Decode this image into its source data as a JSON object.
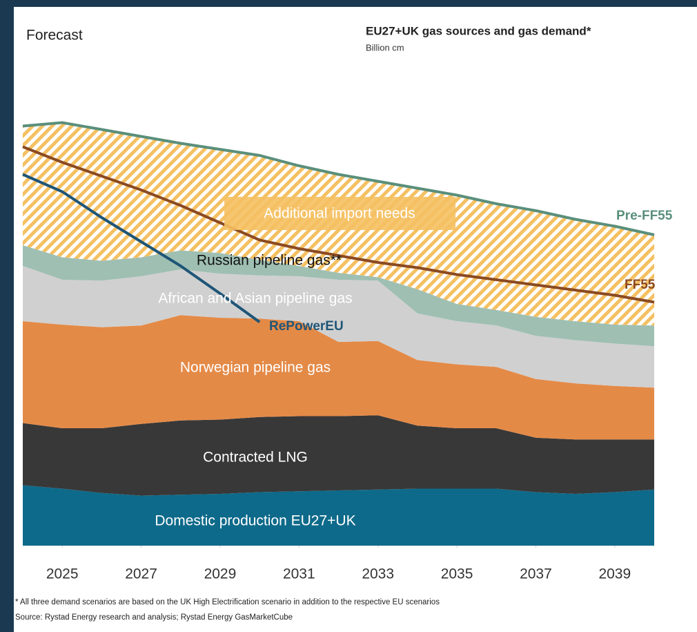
{
  "chart_data": {
    "type": "stacked_area",
    "title": "EU27+UK gas sources and gas demand*",
    "subtitle": "Billion cm",
    "annotation": "Forecast",
    "footnote": "* All three demand scenarios are based on the UK High Electrification scenario in addition to the respective EU scenarios",
    "source": "Source: Rystad Energy research and analysis; Rystad Energy GasMarketCube",
    "x": [
      2024,
      2025,
      2026,
      2027,
      2028,
      2029,
      2030,
      2031,
      2032,
      2033,
      2034,
      2035,
      2036,
      2037,
      2038,
      2039,
      2040
    ],
    "xlim": [
      2024,
      2040
    ],
    "xticks": [
      2025,
      2027,
      2029,
      2031,
      2033,
      2035,
      2037,
      2039
    ],
    "ylim": [
      0,
      520
    ],
    "series": [
      {
        "name": "Domestic production EU27+UK",
        "color": "#0e6a8a",
        "values": [
          70,
          66,
          61,
          58,
          59,
          60,
          62,
          63,
          64,
          65,
          66,
          66,
          66,
          62,
          60,
          62,
          65
        ]
      },
      {
        "name": "Contracted LNG",
        "color": "#383838",
        "values": [
          72,
          70,
          75,
          83,
          86,
          86,
          87,
          87,
          86,
          86,
          73,
          70,
          70,
          63,
          63,
          61,
          58
        ]
      },
      {
        "name": "Norwegian pipeline gas",
        "color": "#e48a47",
        "values": [
          118,
          120,
          117,
          114,
          122,
          118,
          114,
          110,
          86,
          86,
          76,
          74,
          71,
          68,
          65,
          62,
          60
        ]
      },
      {
        "name": "African and Asian pipeline gas",
        "color": "#d0d0d0",
        "values": [
          64,
          52,
          54,
          57,
          53,
          51,
          50,
          52,
          72,
          70,
          54,
          50,
          48,
          50,
          50,
          49,
          48
        ]
      },
      {
        "name": "Russian pipeline gas**",
        "color": "#9fbfb3",
        "values": [
          24,
          26,
          23,
          22,
          22,
          24,
          18,
          12,
          8,
          4,
          28,
          20,
          18,
          22,
          22,
          22,
          24
        ]
      },
      {
        "name": "Additional import needs",
        "color": "#f5c062",
        "hatch": true,
        "values": [
          138,
          156,
          152,
          140,
          124,
          120,
          121,
          116,
          114,
          111,
          117,
          126,
          123,
          123,
          118,
          114,
          105
        ]
      }
    ],
    "lines": [
      {
        "name": "Pre-FF55",
        "color": "#5a8f7b",
        "values": [
          486,
          490,
          482,
          474,
          466,
          459,
          452,
          440,
          430,
          422,
          414,
          406,
          396,
          388,
          378,
          370,
          360
        ]
      },
      {
        "name": "FF55",
        "color": "#8b4a22",
        "values": [
          462,
          444,
          428,
          412,
          394,
          374,
          354,
          344,
          336,
          328,
          322,
          314,
          308,
          302,
          296,
          290,
          282
        ]
      },
      {
        "name": "RePowerEU",
        "color": "#1f5577",
        "values": [
          430,
          410,
          380,
          352,
          324,
          292,
          259,
          null,
          null,
          null,
          null,
          null,
          null,
          null,
          null,
          null,
          null
        ]
      }
    ]
  }
}
